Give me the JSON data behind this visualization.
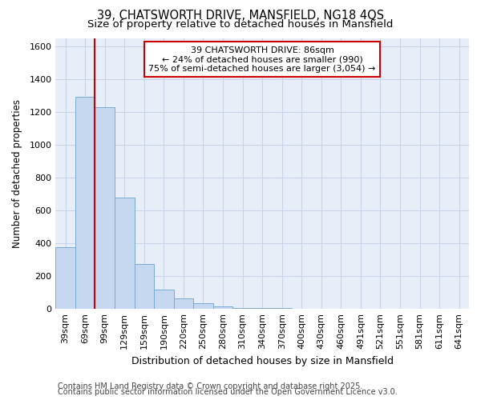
{
  "title_line1": "39, CHATSWORTH DRIVE, MANSFIELD, NG18 4QS",
  "title_line2": "Size of property relative to detached houses in Mansfield",
  "xlabel": "Distribution of detached houses by size in Mansfield",
  "ylabel": "Number of detached properties",
  "categories": [
    "39sqm",
    "69sqm",
    "99sqm",
    "129sqm",
    "159sqm",
    "190sqm",
    "220sqm",
    "250sqm",
    "280sqm",
    "310sqm",
    "340sqm",
    "370sqm",
    "400sqm",
    "430sqm",
    "460sqm",
    "491sqm",
    "521sqm",
    "551sqm",
    "581sqm",
    "611sqm",
    "641sqm"
  ],
  "values": [
    375,
    1290,
    1230,
    680,
    275,
    120,
    65,
    38,
    18,
    8,
    6,
    4,
    3,
    2,
    1,
    1,
    1,
    0,
    0,
    0,
    0
  ],
  "bar_color": "#c5d8f0",
  "bar_edgecolor": "#7aaad0",
  "vline_color": "#cc0000",
  "vline_x": 1.5,
  "annotation_text": "39 CHATSWORTH DRIVE: 86sqm\n← 24% of detached houses are smaller (990)\n75% of semi-detached houses are larger (3,054) →",
  "annotation_box_facecolor": "#ffffff",
  "annotation_box_edgecolor": "#cc0000",
  "ylim": [
    0,
    1650
  ],
  "yticks": [
    0,
    200,
    400,
    600,
    800,
    1000,
    1200,
    1400,
    1600
  ],
  "grid_color": "#c8d4e8",
  "plot_bg_color": "#e8eef8",
  "fig_bg_color": "#ffffff",
  "footer_line1": "Contains HM Land Registry data © Crown copyright and database right 2025.",
  "footer_line2": "Contains public sector information licensed under the Open Government Licence v3.0.",
  "title_fontsize": 10.5,
  "subtitle_fontsize": 9.5,
  "ylabel_fontsize": 8.5,
  "xlabel_fontsize": 9,
  "tick_fontsize": 8,
  "annotation_fontsize": 8,
  "footer_fontsize": 7
}
